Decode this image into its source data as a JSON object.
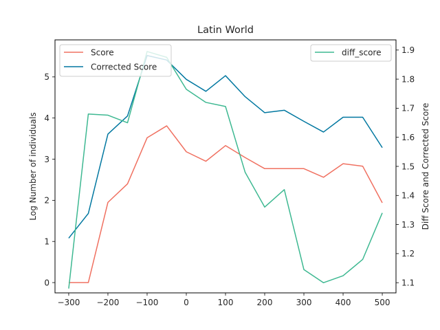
{
  "chart_data": {
    "type": "line",
    "title": "Latin World",
    "xlabel": "",
    "ylabel_left": "Log Number of individuals",
    "ylabel_right": "Diff Score and Corrected Score",
    "x": [
      -300,
      -250,
      -200,
      -150,
      -100,
      -50,
      0,
      50,
      100,
      150,
      200,
      250,
      300,
      350,
      400,
      450,
      500
    ],
    "xlim": [
      -335,
      535
    ],
    "ylim_left": [
      -0.25,
      5.9
    ],
    "ylim_right": [
      1.065,
      1.935
    ],
    "x_ticks": [
      -300,
      -200,
      -100,
      0,
      100,
      200,
      300,
      400,
      500
    ],
    "y_ticks_left": [
      0,
      1,
      2,
      3,
      4,
      5
    ],
    "y_ticks_right": [
      1.1,
      1.2,
      1.3,
      1.4,
      1.5,
      1.6,
      1.7,
      1.8,
      1.9
    ],
    "series": [
      {
        "name": "Score",
        "axis": "left",
        "color": "#f07060",
        "values": [
          0,
          0,
          1.95,
          2.4,
          3.52,
          3.81,
          3.18,
          2.95,
          3.33,
          3.04,
          2.77,
          2.77,
          2.77,
          2.56,
          2.89,
          2.83,
          1.94
        ]
      },
      {
        "name": "Corrected Score",
        "axis": "left",
        "color": "#0077a0",
        "values": [
          1.08,
          1.68,
          3.61,
          4.05,
          5.52,
          5.41,
          4.94,
          4.65,
          5.03,
          4.52,
          4.13,
          4.19,
          3.92,
          3.66,
          4.02,
          4.02,
          3.28
        ]
      },
      {
        "name": "diff_score",
        "axis": "right",
        "color": "#3db891",
        "values": [
          1.08,
          1.68,
          1.676,
          1.65,
          1.895,
          1.875,
          1.765,
          1.72,
          1.706,
          1.48,
          1.36,
          1.42,
          1.145,
          1.1,
          1.124,
          1.18,
          1.34
        ]
      }
    ],
    "legend_left": {
      "placement": "upper-left",
      "entries": [
        "Score",
        "Corrected Score"
      ]
    },
    "legend_right": {
      "placement": "upper-right",
      "entries": [
        "diff_score"
      ]
    },
    "grid": false
  }
}
